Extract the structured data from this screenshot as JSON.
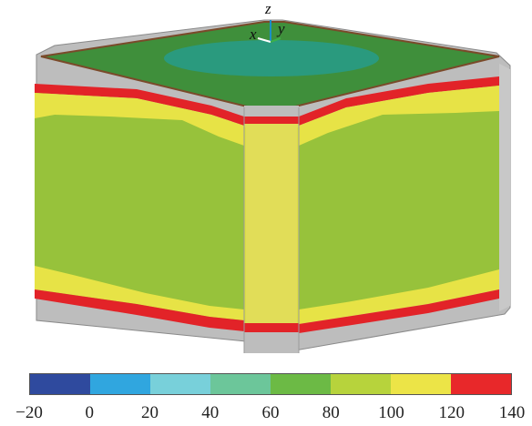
{
  "axes_triad": {
    "x": "x",
    "y": "y",
    "z": "z"
  },
  "colorbar": {
    "ticks": [
      "−20",
      "0",
      "20",
      "40",
      "60",
      "80",
      "100",
      "120",
      "140"
    ],
    "colors": [
      "#2f4a9e",
      "#30a6df",
      "#78d0da",
      "#6cc69a",
      "#6cba45",
      "#b7d33c",
      "#ece447",
      "#e8282a"
    ]
  },
  "palette": {
    "surface_green": "#97c23b",
    "top_green": "#3f8f3b",
    "top_teal": "#2a9a7e",
    "edge_gray": "#bdbdbd",
    "band_yellow": "#e7e346",
    "band_red": "#e22328"
  }
}
